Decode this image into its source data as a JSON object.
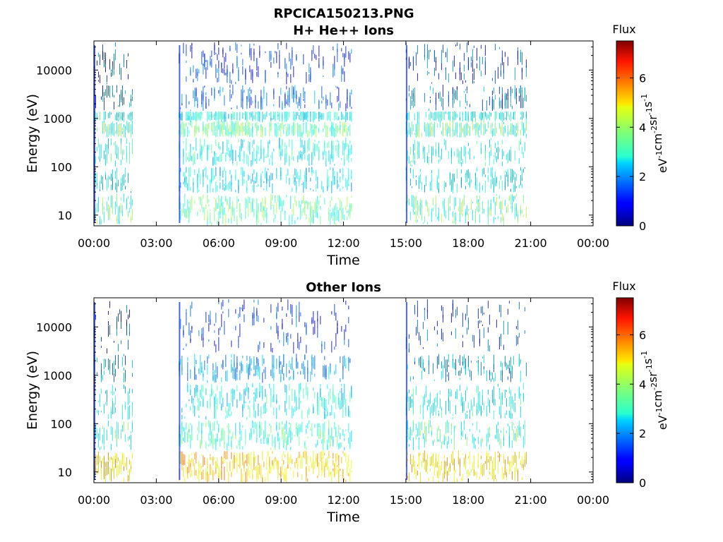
{
  "figure": {
    "title": "RPCICA150213.PNG"
  },
  "colorbar": {
    "label": "Flux",
    "unit_parts": [
      "eV",
      "-1",
      "cm",
      "-2",
      "sr",
      "-1",
      "s",
      "-1"
    ],
    "range": [
      0,
      7.5
    ],
    "ticks": [
      "0",
      "2",
      "4",
      "6"
    ],
    "tick_values": [
      0,
      2,
      4,
      6
    ],
    "colormap": "jet"
  },
  "chart_data": [
    {
      "type": "heatmap",
      "title": "H+ He++ Ions",
      "xlabel": "Time",
      "ylabel": "Energy (eV)",
      "y_scale": "log",
      "ylim": [
        6,
        40000
      ],
      "xlim": [
        "00:00",
        "24:00"
      ],
      "x_ticks": [
        "00:00",
        "03:00",
        "06:00",
        "09:00",
        "12:00",
        "15:00",
        "18:00",
        "21:00",
        "00:00"
      ],
      "y_ticks": [
        "10",
        "100",
        "1000",
        "10000"
      ],
      "y_tick_values": [
        10,
        100,
        1000,
        10000
      ],
      "data_intervals": [
        [
          "00:00",
          "01:50"
        ],
        [
          "04:05",
          "12:25"
        ],
        [
          "15:00",
          "20:50"
        ]
      ],
      "bands": [
        {
          "e_min": 6,
          "e_max": 28,
          "flux": 3.4
        },
        {
          "e_min": 28,
          "e_max": 100,
          "flux": 2.6
        },
        {
          "e_min": 100,
          "e_max": 400,
          "flux": 2.9
        },
        {
          "e_min": 400,
          "e_max": 900,
          "flux": 3.4
        },
        {
          "e_min": 900,
          "e_max": 1400,
          "flux": 2.8
        },
        {
          "e_min": 1400,
          "e_max": 5000,
          "flux": 1.6
        },
        {
          "e_min": 5000,
          "e_max": 38000,
          "flux": 1.3
        }
      ],
      "colorbar_label": "Flux"
    },
    {
      "type": "heatmap",
      "title": "Other Ions",
      "xlabel": "Time",
      "ylabel": "Energy (eV)",
      "y_scale": "log",
      "ylim": [
        6,
        40000
      ],
      "xlim": [
        "00:00",
        "24:00"
      ],
      "x_ticks": [
        "00:00",
        "03:00",
        "06:00",
        "09:00",
        "12:00",
        "15:00",
        "18:00",
        "21:00",
        "00:00"
      ],
      "y_ticks": [
        "10",
        "100",
        "1000",
        "10000"
      ],
      "y_tick_values": [
        10,
        100,
        1000,
        10000
      ],
      "data_intervals": [
        [
          "00:00",
          "01:50"
        ],
        [
          "04:05",
          "12:25"
        ],
        [
          "15:00",
          "20:50"
        ]
      ],
      "bands": [
        {
          "e_min": 6,
          "e_max": 28,
          "flux": 5.0
        },
        {
          "e_min": 28,
          "e_max": 120,
          "flux": 3.2
        },
        {
          "e_min": 120,
          "e_max": 700,
          "flux": 2.8
        },
        {
          "e_min": 700,
          "e_max": 2800,
          "flux": 2.0
        },
        {
          "e_min": 2800,
          "e_max": 38000,
          "flux": 1.2
        }
      ],
      "colorbar_label": "Flux"
    }
  ]
}
